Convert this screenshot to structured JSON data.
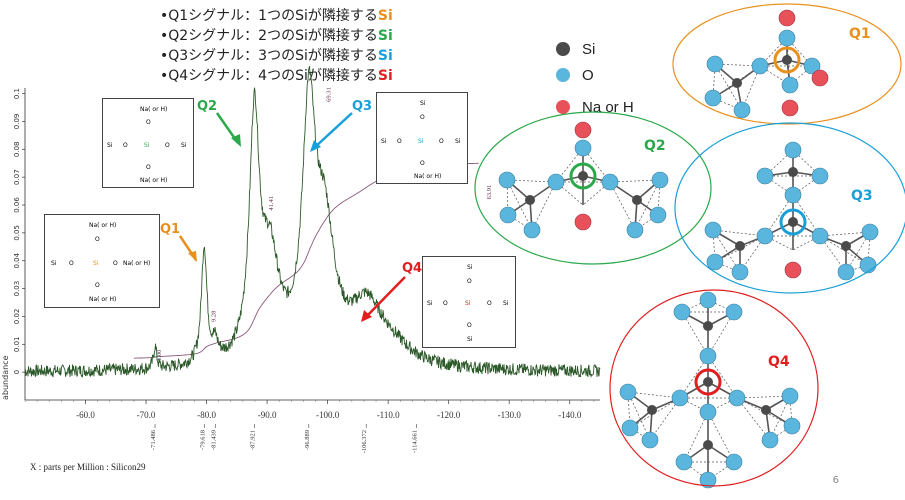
{
  "legend": {
    "items": [
      {
        "prefix": "•Q1シグナル：1つのSiが隣接する",
        "tag": "Si",
        "color": "#e8901e"
      },
      {
        "prefix": "•Q2シグナル：2つのSiが隣接する",
        "tag": "Si",
        "color": "#2ba84a"
      },
      {
        "prefix": "•Q3シグナル：3つのSiが隣接する",
        "tag": "Si",
        "color": "#1aa0d8"
      },
      {
        "prefix": "•Q4シグナル：4つのSiが隣接する",
        "tag": "Si",
        "color": "#e02020"
      }
    ]
  },
  "mol_legend": {
    "si": "Si",
    "o": "O",
    "na": "Na or H",
    "si_color": "#4a4a4a",
    "o_color": "#5ab6dd",
    "na_color": "#e8505a"
  },
  "structs": {
    "si": "Si",
    "o": "O",
    "na": "Na( or H)"
  },
  "labels": {
    "q1": "Q1",
    "q2": "Q2",
    "q3": "Q3",
    "q4": "Q4"
  },
  "footer": {
    "xunit": "X : parts per Million : Silicon29",
    "page": "6"
  },
  "chart_data": {
    "type": "line",
    "title": "",
    "xlabel": "X : parts per Million : Silicon29",
    "ylabel": "abundance",
    "xlim": [
      -50,
      -145
    ],
    "ylim": [
      -0.01,
      0.102
    ],
    "x_ticks": [
      -60,
      -70,
      -80,
      -90,
      -100,
      -110,
      -120,
      -130,
      -140
    ],
    "x_tick_labels": [
      "-60.0",
      "-70.0",
      "-80.0",
      "-90.0",
      "-100.0",
      "-110.0",
      "-120.0",
      "-130.0",
      "-140.0"
    ],
    "y_ticks": [
      0,
      0.01,
      0.02,
      0.03,
      0.04,
      0.05,
      0.06,
      0.07,
      0.08,
      0.09,
      0.1
    ],
    "y_tick_labels": [
      "0",
      "0.01",
      "0.02",
      "0.03",
      "0.04",
      "0.05",
      "0.06",
      "0.07",
      "0.08",
      "0.09",
      "0.1"
    ],
    "peak_labels": [
      "-71.486",
      "-79.618",
      "-81.439",
      "-87.921",
      "-96.889",
      "-106.372",
      "-114.661"
    ],
    "peak_positions": [
      -71.486,
      -79.618,
      -81.439,
      -87.921,
      -96.889,
      -106.372,
      -114.661
    ],
    "integrals": [
      "1.00",
      "9.28",
      "41.41",
      "69.31",
      "63.91"
    ],
    "peaks": [
      {
        "x": -71.5,
        "height": 0.008,
        "width": 0.3
      },
      {
        "x": -79.6,
        "height": 0.042,
        "width": 0.55
      },
      {
        "x": -81.4,
        "height": 0.006,
        "width": 0.6
      },
      {
        "x": -87.9,
        "height": 0.085,
        "width": 1.0
      },
      {
        "x": -90.5,
        "height": 0.035,
        "width": 1.8
      },
      {
        "x": -96.9,
        "height": 0.085,
        "width": 1.3
      },
      {
        "x": -99.5,
        "height": 0.045,
        "width": 2.0
      },
      {
        "x": -106.4,
        "height": 0.02,
        "width": 3.2
      },
      {
        "x": -110.5,
        "height": 0.006,
        "width": 4.0
      }
    ]
  }
}
